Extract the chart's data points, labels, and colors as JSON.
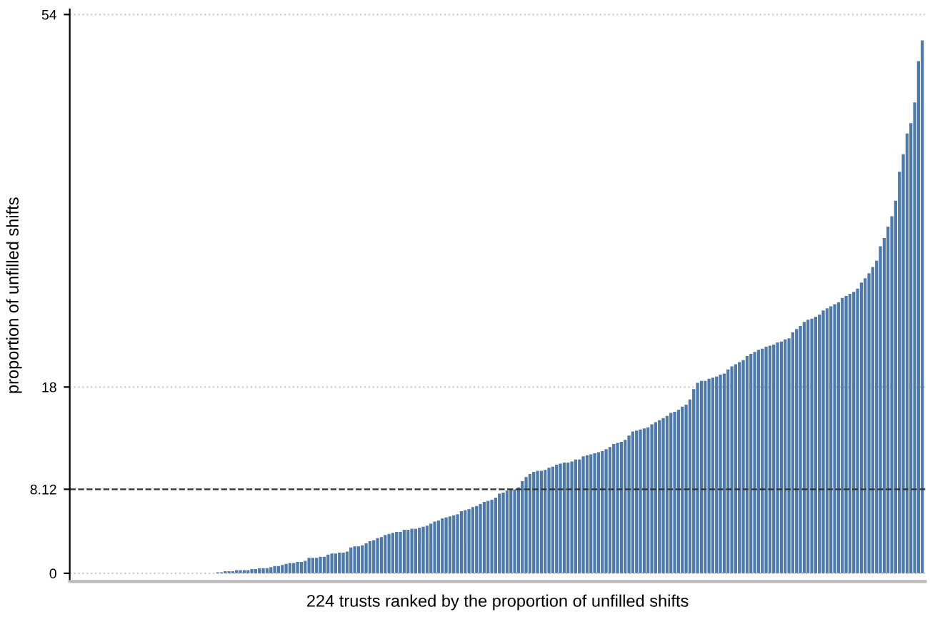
{
  "chart_data": {
    "type": "bar",
    "xlabel": "224 trusts ranked by the proportion of unfilled shifts",
    "ylabel": "proportion of unfilled shifts",
    "categories": [
      null,
      null,
      null,
      null,
      null,
      null,
      null,
      null,
      null,
      null,
      null,
      null,
      null,
      null,
      null,
      null,
      null,
      null,
      null,
      null,
      null,
      null,
      null,
      null,
      null,
      null,
      null,
      null,
      null,
      null,
      null,
      null,
      null,
      null,
      null,
      null,
      null,
      null,
      null,
      null,
      null,
      null,
      null,
      null,
      null,
      null,
      null,
      null,
      null,
      null,
      null,
      null,
      null,
      null,
      null,
      null,
      null,
      null,
      null,
      null,
      null,
      null,
      null,
      null,
      null,
      null,
      null,
      null,
      null,
      null,
      null,
      null,
      null,
      null,
      null,
      null,
      null,
      null,
      null,
      null,
      null,
      null,
      null,
      null,
      null,
      null,
      null,
      null,
      null,
      null,
      null,
      null,
      null,
      null,
      null,
      null,
      null,
      null,
      null,
      null,
      null,
      null,
      null,
      null,
      null,
      null,
      null,
      null,
      null,
      null,
      null,
      null,
      null,
      null,
      null,
      null,
      null,
      null,
      null,
      null,
      null,
      null,
      null,
      null,
      null,
      null,
      null,
      null,
      null,
      null,
      null,
      null,
      null,
      null,
      null,
      null,
      null,
      null,
      null,
      null,
      null,
      null,
      null,
      null,
      null,
      null,
      null,
      null,
      null,
      null,
      null,
      null,
      null,
      null,
      null,
      null,
      null,
      null,
      null,
      null,
      null,
      null,
      null,
      null,
      null,
      null,
      null,
      null,
      null,
      null,
      null,
      null,
      null,
      null,
      null,
      null,
      null,
      null,
      null,
      null,
      null,
      null,
      null,
      null,
      null,
      null,
      null,
      null,
      null,
      null,
      null,
      null,
      null,
      null,
      null,
      null,
      null,
      null,
      null,
      null,
      null,
      null,
      null,
      null,
      null,
      null,
      null,
      null,
      null,
      null,
      null,
      null,
      null,
      null,
      null,
      null,
      null,
      null,
      null,
      null,
      null,
      null,
      null,
      null
    ],
    "values": [
      0,
      0,
      0,
      0,
      0,
      0,
      0,
      0,
      0,
      0,
      0,
      0,
      0,
      0,
      0,
      0,
      0,
      0,
      0,
      0,
      0,
      0,
      0,
      0,
      0,
      0,
      0,
      0,
      0,
      0,
      0,
      0,
      0,
      0,
      0,
      0,
      0,
      0,
      0.1,
      0.1,
      0.2,
      0.2,
      0.2,
      0.3,
      0.3,
      0.3,
      0.3,
      0.4,
      0.4,
      0.5,
      0.5,
      0.5,
      0.6,
      0.7,
      0.7,
      0.8,
      0.9,
      1.0,
      1.0,
      1.1,
      1.1,
      1.2,
      1.5,
      1.5,
      1.5,
      1.6,
      1.6,
      1.8,
      1.9,
      1.9,
      2.0,
      2.0,
      2.1,
      2.5,
      2.6,
      2.6,
      2.7,
      2.9,
      3.1,
      3.2,
      3.4,
      3.5,
      3.7,
      3.8,
      3.9,
      4.0,
      4.0,
      4.2,
      4.2,
      4.3,
      4.3,
      4.4,
      4.5,
      4.6,
      4.8,
      5.0,
      5.1,
      5.3,
      5.4,
      5.5,
      5.6,
      5.7,
      6.0,
      6.1,
      6.2,
      6.4,
      6.5,
      6.7,
      6.9,
      7.0,
      7.1,
      7.3,
      7.7,
      7.8,
      8.0,
      8.1,
      8.1,
      8.3,
      8.9,
      9.3,
      9.6,
      9.8,
      9.9,
      9.9,
      10.0,
      10.2,
      10.3,
      10.5,
      10.6,
      10.7,
      10.7,
      10.8,
      11.0,
      11.0,
      11.3,
      11.4,
      11.5,
      11.6,
      11.7,
      11.8,
      12.0,
      12.2,
      12.5,
      12.6,
      12.7,
      12.9,
      13.3,
      13.7,
      13.8,
      13.9,
      14.0,
      14.1,
      14.4,
      14.6,
      14.8,
      15.0,
      15.2,
      15.5,
      15.6,
      15.8,
      16.1,
      16.3,
      16.8,
      17.8,
      18.4,
      18.6,
      18.6,
      18.8,
      18.9,
      19.0,
      19.2,
      19.3,
      19.7,
      20.0,
      20.2,
      20.4,
      20.6,
      21.0,
      21.2,
      21.4,
      21.6,
      21.7,
      21.9,
      22.0,
      22.1,
      22.3,
      22.4,
      22.6,
      22.7,
      23.3,
      23.6,
      23.9,
      24.3,
      24.5,
      24.6,
      24.8,
      25.0,
      25.4,
      25.6,
      25.8,
      26.0,
      26.2,
      26.6,
      26.8,
      27.0,
      27.2,
      27.5,
      28.1,
      28.5,
      29.0,
      29.6,
      30.2,
      31.6,
      32.4,
      33.5,
      34.5,
      36.0,
      38.8,
      40.5,
      42.5,
      43.5,
      45.5,
      49.5,
      51.5
    ],
    "color": "#4f7aa8",
    "ylim": [
      -0.8,
      54.5
    ],
    "yticks": [
      0,
      8.12,
      18,
      54
    ],
    "grid": "y",
    "ref_lines": [
      {
        "axis": "y",
        "value": 8.12,
        "color": "#333333",
        "line_style": "dashed"
      }
    ]
  }
}
